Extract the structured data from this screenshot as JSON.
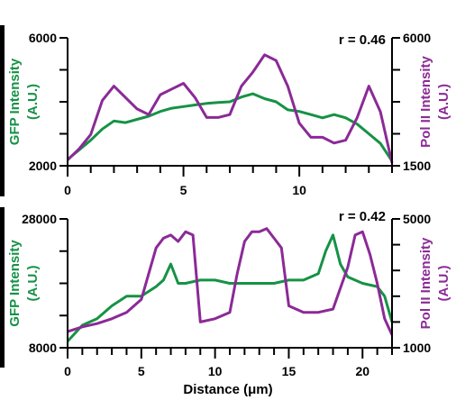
{
  "colors": {
    "gfp": "#169245",
    "pol2": "#8b2a96",
    "axis": "#000000"
  },
  "chart_data": [
    {
      "type": "line",
      "xlabel": "",
      "xlim": [
        0,
        14
      ],
      "x_ticks": [
        0,
        5,
        10
      ],
      "x_tick_labels": [
        "0",
        "5",
        "10"
      ],
      "ylabel_left_lines": [
        "GFP Intensity",
        "(A.U.)"
      ],
      "ylabel_right_lines": [
        "Pol II Intensity",
        "(A.U.)"
      ],
      "ylim_left": [
        2000,
        6000
      ],
      "ylim_right": [
        1500,
        6000
      ],
      "left_tick_labels": [
        "6000",
        "2000"
      ],
      "right_tick_labels": [
        "6000",
        "1500"
      ],
      "annotation": "r = 0.46",
      "series": [
        {
          "axis": "left",
          "color": "#169245",
          "x": [
            0,
            0.5,
            1,
            1.5,
            2,
            2.5,
            3,
            3.5,
            4,
            4.5,
            5,
            5.5,
            6,
            6.5,
            7,
            7.5,
            8,
            8.5,
            9,
            9.5,
            10,
            10.5,
            11,
            11.5,
            12,
            12.5,
            13,
            13.5,
            14
          ],
          "y": [
            2200,
            2500,
            2800,
            3150,
            3400,
            3350,
            3450,
            3550,
            3700,
            3800,
            3850,
            3900,
            3950,
            3980,
            4000,
            4150,
            4250,
            4100,
            4000,
            3750,
            3700,
            3600,
            3500,
            3600,
            3500,
            3300,
            3000,
            2700,
            2150
          ]
        },
        {
          "axis": "right",
          "color": "#8b2a96",
          "x": [
            0,
            0.5,
            1,
            1.5,
            2,
            2.5,
            3,
            3.5,
            4,
            4.5,
            5,
            5.5,
            6,
            6.5,
            7,
            7.5,
            8,
            8.5,
            9,
            9.5,
            10,
            10.5,
            11,
            11.5,
            12,
            12.5,
            13,
            13.5,
            14
          ],
          "y": [
            1700,
            2100,
            2600,
            3800,
            4300,
            3900,
            3500,
            3300,
            4000,
            4200,
            4400,
            3900,
            3200,
            3200,
            3300,
            4300,
            4800,
            5400,
            5200,
            4300,
            3000,
            2500,
            2500,
            2300,
            2400,
            3200,
            4300,
            3400,
            1600
          ]
        }
      ]
    },
    {
      "type": "line",
      "xlabel": "Distance (μm)",
      "xlim": [
        0,
        22
      ],
      "x_ticks": [
        0,
        5,
        10,
        15,
        20
      ],
      "x_tick_labels": [
        "0",
        "5",
        "10",
        "15",
        "20"
      ],
      "ylabel_left_lines": [
        "GFP Intensity",
        "(A.U.)"
      ],
      "ylabel_right_lines": [
        "Pol II Intensity",
        "(A.U.)"
      ],
      "ylim_left": [
        8000,
        28000
      ],
      "ylim_right": [
        1000,
        5000
      ],
      "left_tick_labels": [
        "28000",
        "8000"
      ],
      "right_tick_labels": [
        "5000",
        "1000"
      ],
      "annotation": "r = 0.42",
      "series": [
        {
          "axis": "left",
          "color": "#169245",
          "x": [
            0,
            1,
            2,
            3,
            4,
            5,
            6,
            6.5,
            7,
            7.5,
            8,
            9,
            10,
            11,
            12,
            13,
            14,
            15,
            16,
            17,
            17.5,
            18,
            18.5,
            19,
            20,
            21,
            21.5,
            22
          ],
          "y": [
            9000,
            11500,
            12500,
            14500,
            16000,
            16000,
            17500,
            18500,
            21000,
            18000,
            18000,
            18500,
            18500,
            18000,
            18000,
            18000,
            18000,
            18500,
            18500,
            19500,
            23000,
            25500,
            21000,
            19000,
            18000,
            17500,
            16000,
            12000
          ]
        },
        {
          "axis": "right",
          "color": "#8b2a96",
          "x": [
            0,
            1,
            2,
            3,
            4,
            5,
            5.5,
            6,
            6.5,
            7,
            7.5,
            8,
            8.5,
            9,
            10,
            11,
            11.5,
            12,
            12.5,
            13,
            13.5,
            14,
            14.5,
            15,
            16,
            17,
            18,
            19,
            19.5,
            20,
            20.5,
            21,
            21.5,
            22
          ],
          "y": [
            1500,
            1650,
            1750,
            1900,
            2100,
            2500,
            3300,
            4100,
            4400,
            4500,
            4300,
            4600,
            4500,
            1800,
            1900,
            2100,
            3300,
            4300,
            4600,
            4600,
            4700,
            4400,
            4100,
            2300,
            2100,
            2100,
            2200,
            3500,
            4500,
            4600,
            3900,
            3000,
            1900,
            1400
          ]
        }
      ]
    }
  ]
}
